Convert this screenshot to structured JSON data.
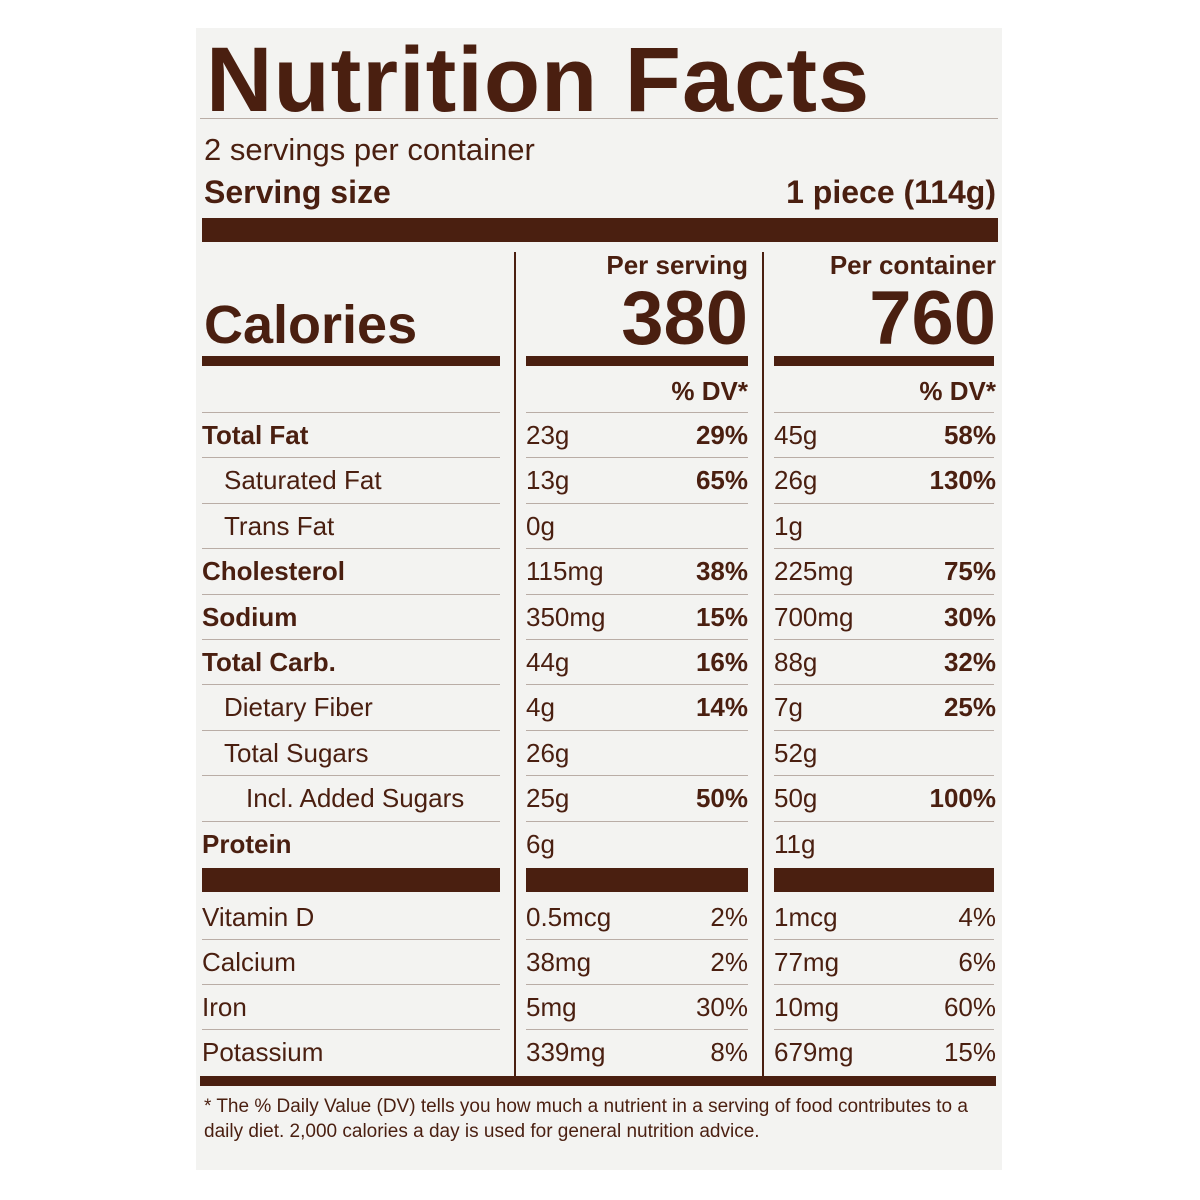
{
  "header": {
    "title": "Nutrition Facts",
    "servings_per_container": "2 servings per container",
    "serving_size_label": "Serving size",
    "serving_size_value": "1 piece (114g)"
  },
  "columns": {
    "per_serving_label": "Per serving",
    "per_container_label": "Per container",
    "calories_label": "Calories",
    "calories_serving": "380",
    "calories_container": "760",
    "dv_label": "% DV*"
  },
  "nutrients": [
    {
      "label": "Total Fat",
      "s_amt": "23g",
      "s_dv": "29%",
      "c_amt": "45g",
      "c_dv": "58%"
    },
    {
      "label": "Saturated Fat",
      "s_amt": "13g",
      "s_dv": "65%",
      "c_amt": "26g",
      "c_dv": "130%"
    },
    {
      "label": "Trans Fat",
      "s_amt": "0g",
      "s_dv": "",
      "c_amt": "1g",
      "c_dv": ""
    },
    {
      "label": "Cholesterol",
      "s_amt": "115mg",
      "s_dv": "38%",
      "c_amt": "225mg",
      "c_dv": "75%"
    },
    {
      "label": "Sodium",
      "s_amt": "350mg",
      "s_dv": "15%",
      "c_amt": "700mg",
      "c_dv": "30%"
    },
    {
      "label": "Total Carb.",
      "s_amt": "44g",
      "s_dv": "16%",
      "c_amt": "88g",
      "c_dv": "32%"
    },
    {
      "label": "Dietary Fiber",
      "s_amt": "4g",
      "s_dv": "14%",
      "c_amt": "7g",
      "c_dv": "25%"
    },
    {
      "label": "Total Sugars",
      "s_amt": "26g",
      "s_dv": "",
      "c_amt": "52g",
      "c_dv": ""
    },
    {
      "label": "Incl. Added Sugars",
      "s_amt": "25g",
      "s_dv": "50%",
      "c_amt": "50g",
      "c_dv": "100%"
    },
    {
      "label": "Protein",
      "s_amt": "6g",
      "s_dv": "",
      "c_amt": "11g",
      "c_dv": ""
    }
  ],
  "micronutrients": [
    {
      "label": "Vitamin D",
      "s_amt": "0.5mcg",
      "s_dv": "2%",
      "c_amt": "1mcg",
      "c_dv": "4%"
    },
    {
      "label": "Calcium",
      "s_amt": "38mg",
      "s_dv": "2%",
      "c_amt": "77mg",
      "c_dv": "6%"
    },
    {
      "label": "Iron",
      "s_amt": "5mg",
      "s_dv": "30%",
      "c_amt": "10mg",
      "c_dv": "60%"
    },
    {
      "label": "Potassium",
      "s_amt": "339mg",
      "s_dv": "8%",
      "c_amt": "679mg",
      "c_dv": "15%"
    }
  ],
  "footnote": "* The % Daily Value (DV) tells you how much a nutrient in a serving of food contributes to a daily diet. 2,000 calories a day is used for general nutrition advice.",
  "colors": {
    "text": "#4a1f10",
    "background": "#f3f3f1"
  }
}
